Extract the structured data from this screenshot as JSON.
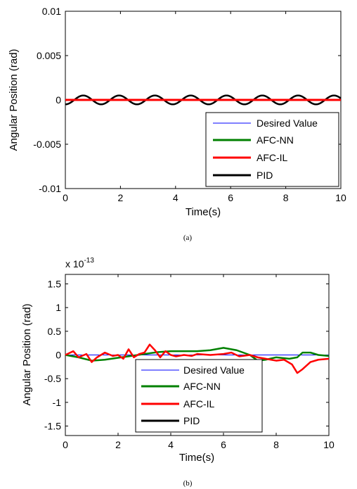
{
  "chart_data": [
    {
      "type": "line",
      "caption": "(a)",
      "xlabel": "Time(s)",
      "ylabel": "Angular Position (rad)",
      "xlim": [
        0,
        10
      ],
      "ylim": [
        -0.01,
        0.01
      ],
      "xticks": [
        "0",
        "2",
        "4",
        "6",
        "8",
        "10"
      ],
      "yticks": [
        "-0.01",
        "-0.005",
        "0",
        "0.005",
        "0.01"
      ],
      "exponent_label": "",
      "legend_position": "bottom-right",
      "series": [
        {
          "name": "Desired Value",
          "color": "#0000ff",
          "shape": "constant",
          "value": 0
        },
        {
          "name": "AFC-NN",
          "color": "#008000",
          "shape": "constant",
          "value": 0
        },
        {
          "name": "AFC-IL",
          "color": "#ff0000",
          "shape": "constant",
          "value": 0
        },
        {
          "name": "PID",
          "color": "#000000",
          "shape": "sinusoid",
          "amplitude": 0.0005,
          "period": 1.3
        }
      ]
    },
    {
      "type": "line",
      "caption": "(b)",
      "xlabel": "Time(s)",
      "ylabel": "Angular Position (rad)",
      "xlim": [
        0,
        10
      ],
      "ylim": [
        -1.7,
        1.7
      ],
      "xticks": [
        "0",
        "2",
        "4",
        "6",
        "8",
        "10"
      ],
      "yticks": [
        "-1.5",
        "-1",
        "-0.5",
        "0",
        "0.5",
        "1",
        "1.5"
      ],
      "exponent_label": "x 10",
      "exponent_power": "-13",
      "legend_position": "bottom-center",
      "series": [
        {
          "name": "Desired Value",
          "color": "#0000ff",
          "x": [
            0,
            10
          ],
          "y": [
            0,
            0
          ]
        },
        {
          "name": "AFC-NN",
          "color": "#008000",
          "x": [
            0,
            0.5,
            1.0,
            1.5,
            2.0,
            2.5,
            3.0,
            3.5,
            4.0,
            4.5,
            5.0,
            5.5,
            6.0,
            6.5,
            7.0,
            7.3,
            7.6,
            8.0,
            8.5,
            8.8,
            9.0,
            9.3,
            9.6,
            10.0
          ],
          "y": [
            0,
            -0.05,
            -0.12,
            -0.1,
            -0.06,
            -0.02,
            0.02,
            0.06,
            0.08,
            0.08,
            0.08,
            0.1,
            0.15,
            0.1,
            0.0,
            -0.12,
            -0.1,
            -0.05,
            -0.08,
            -0.05,
            0.05,
            0.05,
            0.0,
            -0.02
          ]
        },
        {
          "name": "AFC-IL",
          "color": "#ff0000",
          "x": [
            0,
            0.3,
            0.5,
            0.8,
            1.0,
            1.2,
            1.5,
            1.8,
            2.0,
            2.2,
            2.4,
            2.6,
            2.8,
            3.0,
            3.2,
            3.4,
            3.6,
            3.8,
            4.0,
            4.2,
            4.5,
            4.8,
            5.0,
            5.5,
            6.0,
            6.3,
            6.6,
            7.0,
            7.3,
            7.6,
            8.0,
            8.3,
            8.6,
            8.8,
            9.0,
            9.3,
            9.6,
            10.0
          ],
          "y": [
            0,
            0.08,
            -0.05,
            0.02,
            -0.15,
            -0.05,
            0.05,
            -0.02,
            0.0,
            -0.08,
            0.12,
            -0.05,
            0.02,
            0.05,
            0.22,
            0.1,
            -0.05,
            0.08,
            0.0,
            -0.03,
            0.0,
            -0.02,
            0.02,
            0.0,
            0.02,
            0.05,
            -0.03,
            0.0,
            -0.05,
            -0.08,
            -0.12,
            -0.1,
            -0.2,
            -0.38,
            -0.3,
            -0.15,
            -0.1,
            -0.08
          ]
        },
        {
          "name": "PID",
          "color": "#000000",
          "x": [],
          "y": []
        }
      ]
    }
  ]
}
